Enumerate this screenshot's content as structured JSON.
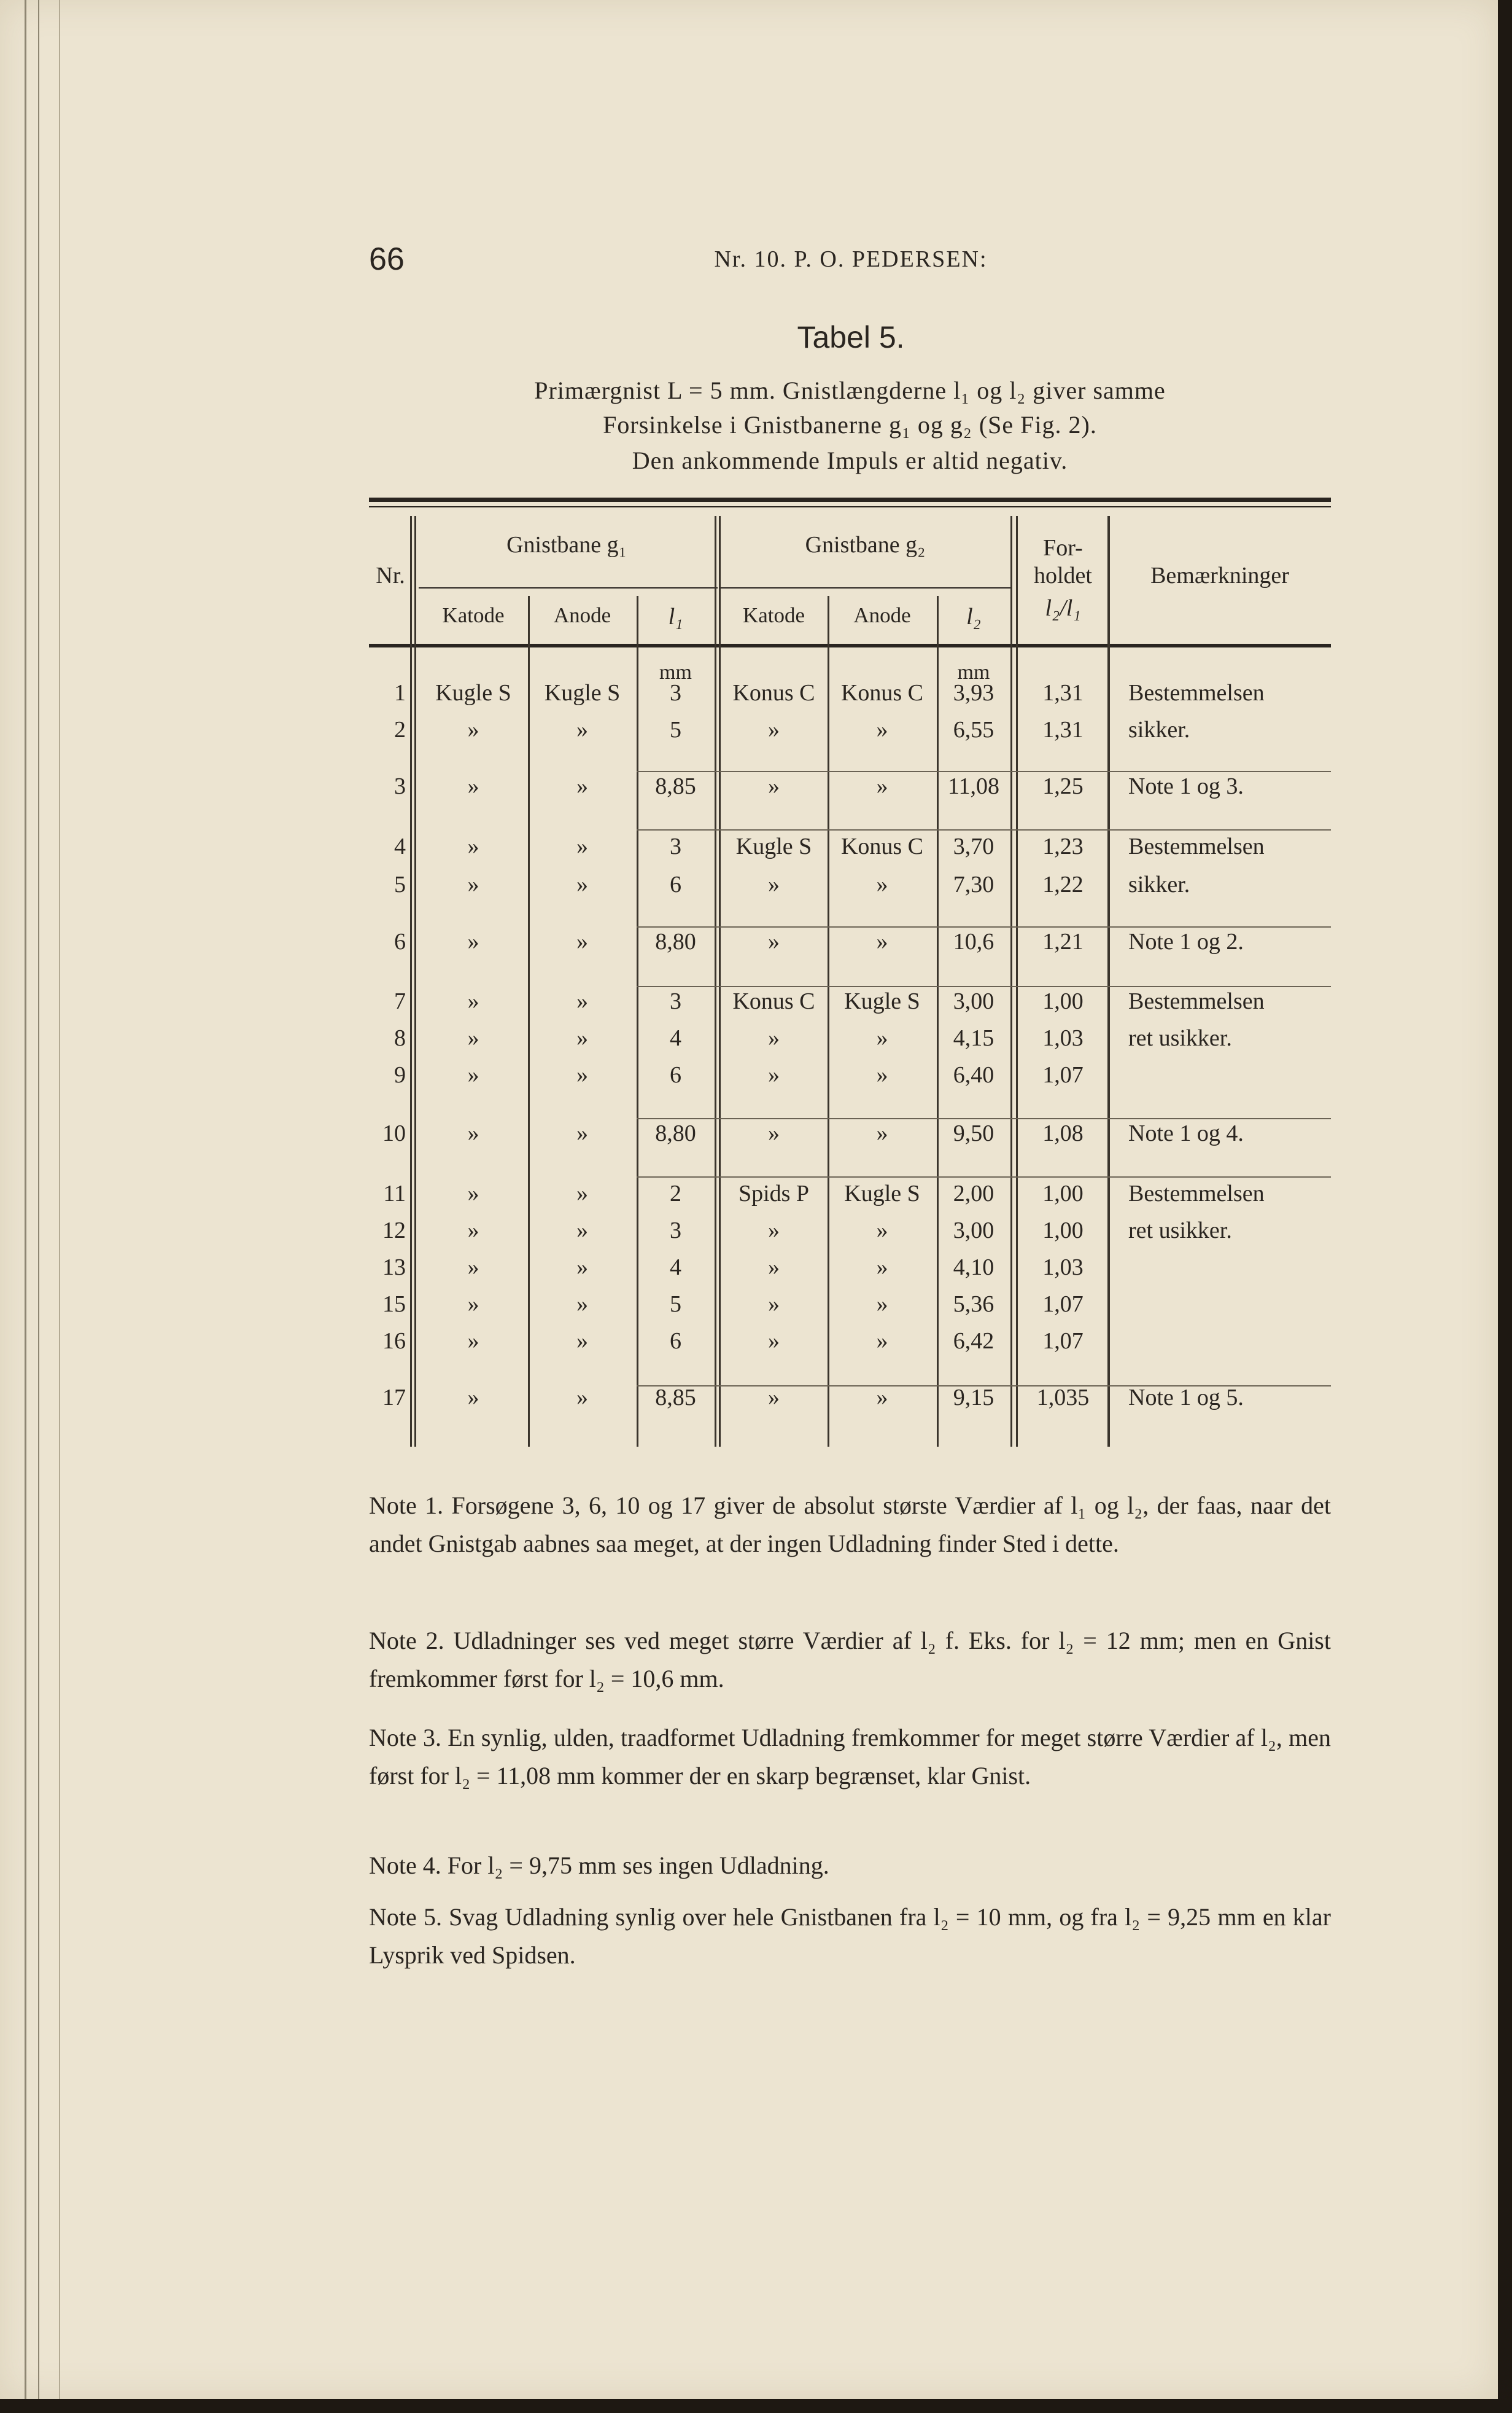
{
  "page_number": "66",
  "running_head": "Nr. 10.  P. O. PEDERSEN:",
  "title": "Tabel 5.",
  "subtitle": [
    "Primærgnist L = 5 mm.  Gnistlængderne l₁ og l₂ giver samme",
    "Forsinkelse i Gnistbanerne g₁ og g₂ (Se Fig. 2).",
    "Den ankommende Impuls er altid negativ."
  ],
  "table": {
    "headers": {
      "nr": "Nr.",
      "g1": "Gnistbane g₁",
      "g2": "Gnistbane g₂",
      "ratio_1": "For-",
      "ratio_2": "holdet",
      "ratio_3": "l₂/l₁",
      "remarks": "Bemærkninger",
      "katode": "Katode",
      "anode": "Anode",
      "l1": "l₁",
      "l2": "l₂",
      "unit": "mm"
    },
    "rows": [
      {
        "nr": "1",
        "k1": "Kugle S",
        "a1": "Kugle S",
        "l1": "3",
        "k2": "Konus C",
        "a2": "Konus C",
        "l2": "3,93",
        "ratio": "1,31",
        "remark": "Bestemmelsen"
      },
      {
        "nr": "2",
        "k1": "»",
        "a1": "»",
        "l1": "5",
        "k2": "»",
        "a2": "»",
        "l2": "6,55",
        "ratio": "1,31",
        "remark": "sikker."
      },
      {
        "nr": "3",
        "k1": "»",
        "a1": "»",
        "l1": "8,85",
        "k2": "»",
        "a2": "»",
        "l2": "11,08",
        "ratio": "1,25",
        "remark": "Note 1 og 3."
      },
      {
        "nr": "4",
        "k1": "»",
        "a1": "»",
        "l1": "3",
        "k2": "Kugle S",
        "a2": "Konus C",
        "l2": "3,70",
        "ratio": "1,23",
        "remark": "Bestemmelsen"
      },
      {
        "nr": "5",
        "k1": "»",
        "a1": "»",
        "l1": "6",
        "k2": "»",
        "a2": "»",
        "l2": "7,30",
        "ratio": "1,22",
        "remark": "sikker."
      },
      {
        "nr": "6",
        "k1": "»",
        "a1": "»",
        "l1": "8,80",
        "k2": "»",
        "a2": "»",
        "l2": "10,6",
        "ratio": "1,21",
        "remark": "Note 1 og 2."
      },
      {
        "nr": "7",
        "k1": "»",
        "a1": "»",
        "l1": "3",
        "k2": "Konus C",
        "a2": "Kugle S",
        "l2": "3,00",
        "ratio": "1,00",
        "remark": "Bestemmelsen"
      },
      {
        "nr": "8",
        "k1": "»",
        "a1": "»",
        "l1": "4",
        "k2": "»",
        "a2": "»",
        "l2": "4,15",
        "ratio": "1,03",
        "remark": "ret usikker."
      },
      {
        "nr": "9",
        "k1": "»",
        "a1": "»",
        "l1": "6",
        "k2": "»",
        "a2": "»",
        "l2": "6,40",
        "ratio": "1,07",
        "remark": ""
      },
      {
        "nr": "10",
        "k1": "»",
        "a1": "»",
        "l1": "8,80",
        "k2": "»",
        "a2": "»",
        "l2": "9,50",
        "ratio": "1,08",
        "remark": "Note 1 og 4."
      },
      {
        "nr": "11",
        "k1": "»",
        "a1": "»",
        "l1": "2",
        "k2": "Spids P",
        "a2": "Kugle S",
        "l2": "2,00",
        "ratio": "1,00",
        "remark": "Bestemmelsen"
      },
      {
        "nr": "12",
        "k1": "»",
        "a1": "»",
        "l1": "3",
        "k2": "»",
        "a2": "»",
        "l2": "3,00",
        "ratio": "1,00",
        "remark": "ret usikker."
      },
      {
        "nr": "13",
        "k1": "»",
        "a1": "»",
        "l1": "4",
        "k2": "»",
        "a2": "»",
        "l2": "4,10",
        "ratio": "1,03",
        "remark": ""
      },
      {
        "nr": "15",
        "k1": "»",
        "a1": "»",
        "l1": "5",
        "k2": "»",
        "a2": "»",
        "l2": "5,36",
        "ratio": "1,07",
        "remark": ""
      },
      {
        "nr": "16",
        "k1": "»",
        "a1": "»",
        "l1": "6",
        "k2": "»",
        "a2": "»",
        "l2": "6,42",
        "ratio": "1,07",
        "remark": ""
      },
      {
        "nr": "17",
        "k1": "»",
        "a1": "»",
        "l1": "8,85",
        "k2": "»",
        "a2": "»",
        "l2": "9,15",
        "ratio": "1,035",
        "remark": "Note 1 og 5."
      }
    ]
  },
  "notes": [
    "Note 1.  Forsøgene 3, 6, 10 og 17 giver de absolut største Værdier af l₁ og l₂, der faas, naar det andet Gnistgab aabnes saa meget, at der ingen Udladning finder Sted i dette.",
    "Note 2.  Udladninger ses ved meget større Værdier af l₂ f. Eks. for l₂ = 12 mm; men en Gnist fremkommer først for l₂ = 10,6 mm.",
    "Note 3.  En synlig, ulden, traadformet Udladning fremkommer for meget større Værdier af l₂, men først for l₂ = 11,08 mm kommer der en skarp begrænset, klar Gnist.",
    "Note 4.  For l₂ = 9,75 mm ses ingen Udladning.",
    "Note 5.  Svag Udladning synlig over hele Gnistbanen fra l₂ = 10 mm, og fra l₂ = 9,25 mm en klar Lysprik ved Spidsen."
  ]
}
